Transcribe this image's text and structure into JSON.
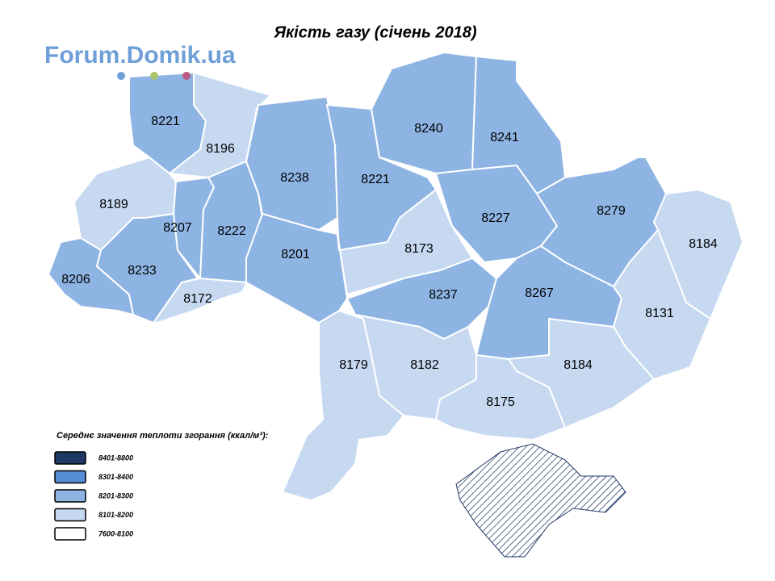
{
  "title": "Якість газу (січень 2018)",
  "logo": "Forum.Domik.ua",
  "legend": {
    "title": "Середнє значення теплоти згорання (ккал/м³):",
    "items": [
      {
        "label": "8401-8800",
        "color": "#1f3864"
      },
      {
        "label": "8301-8400",
        "color": "#558ed5"
      },
      {
        "label": "8201-8300",
        "color": "#8eb4e3"
      },
      {
        "label": "8101-8200",
        "color": "#c6d9f1"
      },
      {
        "label": "7600-8100",
        "color": "#ffffff"
      }
    ]
  },
  "regions": [
    {
      "value": 8221,
      "color": "#8eb4e3"
    },
    {
      "value": 8196,
      "color": "#c6d9f1"
    },
    {
      "value": 8189,
      "color": "#c6d9f1"
    },
    {
      "value": 8207,
      "color": "#8eb4e3"
    },
    {
      "value": 8222,
      "color": "#8eb4e3"
    },
    {
      "value": 8238,
      "color": "#8eb4e3"
    },
    {
      "value": 8221,
      "color": "#8eb4e3"
    },
    {
      "value": 8240,
      "color": "#8eb4e3"
    },
    {
      "value": 8241,
      "color": "#8eb4e3"
    },
    {
      "value": 8227,
      "color": "#8eb4e3"
    },
    {
      "value": 8279,
      "color": "#8eb4e3"
    },
    {
      "value": 8184,
      "color": "#c6d9f1"
    },
    {
      "value": 8206,
      "color": "#8eb4e3"
    },
    {
      "value": 8233,
      "color": "#8eb4e3"
    },
    {
      "value": 8172,
      "color": "#c6d9f1"
    },
    {
      "value": 8201,
      "color": "#8eb4e3"
    },
    {
      "value": 8173,
      "color": "#c6d9f1"
    },
    {
      "value": 8237,
      "color": "#8eb4e3"
    },
    {
      "value": 8267,
      "color": "#8eb4e3"
    },
    {
      "value": 8131,
      "color": "#c6d9f1"
    },
    {
      "value": 8179,
      "color": "#c6d9f1"
    },
    {
      "value": 8182,
      "color": "#c6d9f1"
    },
    {
      "value": 8184,
      "color": "#c6d9f1"
    },
    {
      "value": 8175,
      "color": "#c6d9f1"
    }
  ]
}
